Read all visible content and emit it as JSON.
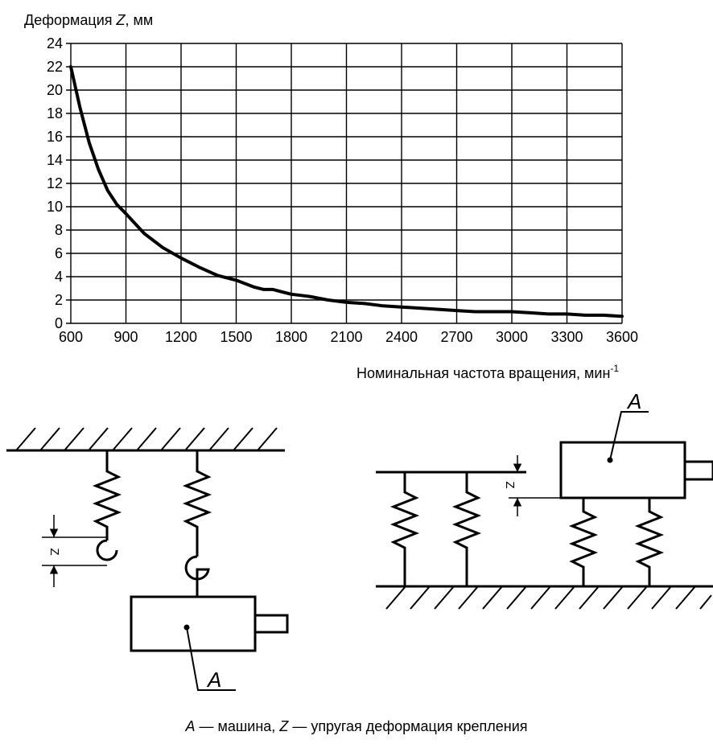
{
  "chart_data": {
    "type": "line",
    "ylabel_main": "Деформация ",
    "ylabel_var": "Z",
    "ylabel_unit": ", мм",
    "xlabel_main": "Номинальная частота вращения, мин",
    "xlabel_sup": "-1",
    "xlim": [
      600,
      3600
    ],
    "ylim": [
      0,
      24
    ],
    "x_ticks": [
      600,
      900,
      1200,
      1500,
      1800,
      2100,
      2400,
      2700,
      3000,
      3300,
      3600
    ],
    "y_ticks": [
      0,
      2,
      4,
      6,
      8,
      10,
      12,
      14,
      16,
      18,
      20,
      22,
      24
    ],
    "grid": true,
    "series": [
      {
        "x": [
          600,
          650,
          700,
          750,
          800,
          850,
          900,
          1000,
          1100,
          1200,
          1300,
          1400,
          1500,
          1550,
          1600,
          1650,
          1700,
          1750,
          1800,
          1850,
          1900,
          2000,
          2100,
          2200,
          2300,
          2400,
          2500,
          2600,
          2700,
          2800,
          2900,
          3000,
          3100,
          3200,
          3300,
          3400,
          3500,
          3600
        ],
        "y": [
          22,
          18.5,
          15.5,
          13.2,
          11.4,
          10.2,
          9.4,
          7.7,
          6.5,
          5.6,
          4.8,
          4.1,
          3.7,
          3.4,
          3.1,
          2.9,
          2.9,
          2.7,
          2.5,
          2.4,
          2.3,
          2.0,
          1.8,
          1.7,
          1.5,
          1.4,
          1.3,
          1.2,
          1.1,
          1.0,
          1.0,
          1.0,
          0.9,
          0.8,
          0.8,
          0.7,
          0.7,
          0.6
        ]
      }
    ]
  },
  "diagram": {
    "label_machine": "A",
    "label_deformation": "Z"
  },
  "caption": {
    "a_letter": "A",
    "a_text": " — машина, ",
    "z_letter": "Z",
    "z_text": " — упругая деформация крепления"
  }
}
